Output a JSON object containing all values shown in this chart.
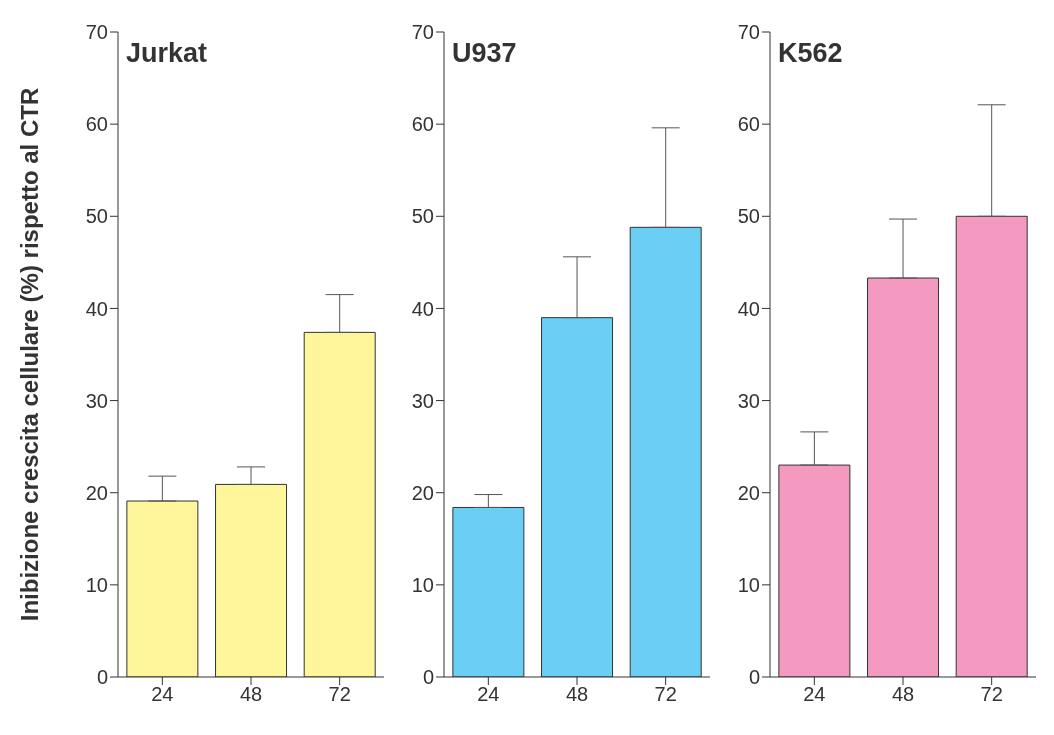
{
  "chart_data": [
    {
      "type": "bar",
      "title": "Jurkat",
      "ylabel": "Inibizione crescita cellulare (%) rispetto al CTR",
      "categories": [
        "24",
        "48",
        "72"
      ],
      "values": [
        19.1,
        20.9,
        37.4
      ],
      "errors": [
        [
          19.1,
          21.8
        ],
        [
          20.9,
          22.8
        ],
        [
          37.4,
          41.5
        ]
      ],
      "color": "#fff59a",
      "ylim": [
        0,
        70
      ],
      "yticks": [
        0,
        10,
        20,
        30,
        40,
        50,
        60,
        70
      ]
    },
    {
      "type": "bar",
      "title": "U937",
      "categories": [
        "24",
        "48",
        "72"
      ],
      "values": [
        18.4,
        39.0,
        48.8
      ],
      "errors": [
        [
          18.4,
          19.8
        ],
        [
          39.0,
          45.6
        ],
        [
          48.8,
          59.6
        ]
      ],
      "color": "#6bcff5",
      "ylim": [
        0,
        70
      ],
      "yticks": [
        0,
        10,
        20,
        30,
        40,
        50,
        60,
        70
      ]
    },
    {
      "type": "bar",
      "title": "K562",
      "categories": [
        "24",
        "48",
        "72"
      ],
      "values": [
        23.0,
        43.3,
        50.0
      ],
      "errors": [
        [
          23.0,
          26.6
        ],
        [
          43.3,
          49.7
        ],
        [
          50.0,
          62.1
        ]
      ],
      "color": "#f49ac1",
      "ylim": [
        0,
        70
      ],
      "yticks": [
        0,
        10,
        20,
        30,
        40,
        50,
        60,
        70
      ]
    }
  ]
}
